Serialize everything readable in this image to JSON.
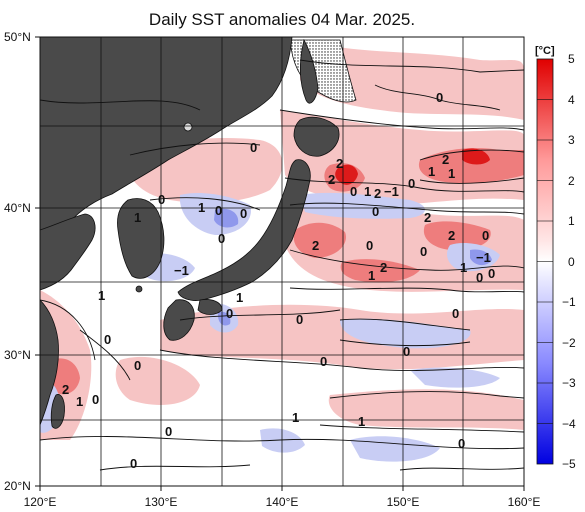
{
  "title": "Daily SST anomalies 04 Mar. 2025.",
  "lat_labels": [
    "50°N",
    "40°N",
    "30°N",
    "20°N"
  ],
  "lon_labels": [
    "120°E",
    "130°E",
    "140°E",
    "150°E",
    "160°E"
  ],
  "colorbar": {
    "unit": "[°C]",
    "ticks": [
      "5",
      "4",
      "3",
      "2",
      "1",
      "0",
      "−1",
      "−2",
      "−3",
      "−4",
      "−5"
    ],
    "colors": [
      "#e00000",
      "#ff6666",
      "#ffffff",
      "#7a7aff",
      "#0000e0"
    ]
  },
  "contour_labels": [
    "0",
    "0",
    "0",
    "0",
    "0",
    "0",
    "0",
    "0",
    "0",
    "0",
    "0",
    "0",
    "0",
    "0",
    "0",
    "0",
    "0",
    "0",
    "0",
    "0",
    "0",
    "0",
    "0",
    "0",
    "1",
    "1",
    "1",
    "1",
    "1",
    "1",
    "1",
    "1",
    "1",
    "1",
    "1",
    "2",
    "2",
    "2",
    "2",
    "2",
    "2",
    "2",
    "2",
    "2",
    "−1",
    "−1",
    "−1",
    "1",
    "0"
  ],
  "colors": {
    "land": "#4a4a4a",
    "warm": "#f2a0a0",
    "cool": "#b8c0f0",
    "grid": "#111111"
  }
}
